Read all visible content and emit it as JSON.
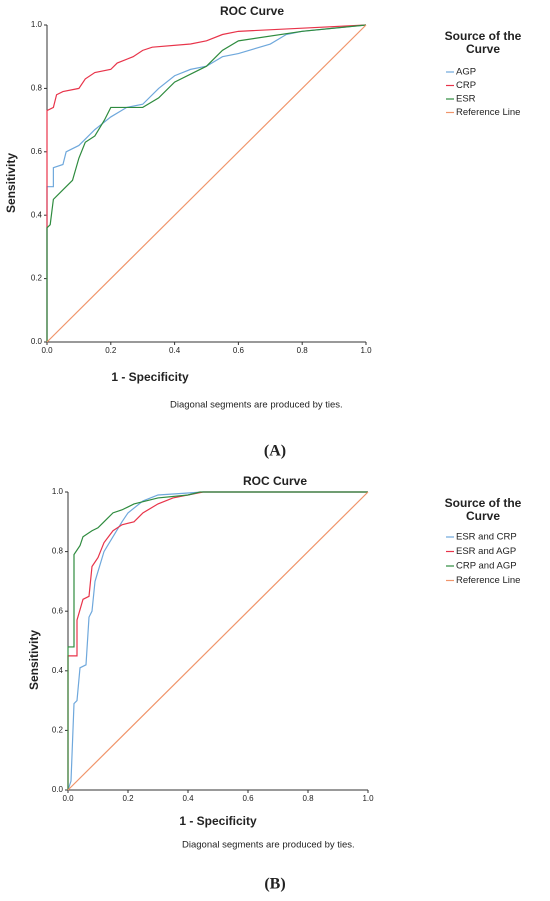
{
  "chart_data": [
    {
      "type": "line",
      "title": "ROC Curve",
      "x_label": "1 - Specificity",
      "y_label": "Sensitivity",
      "note": "Diagonal segments are produced by ties.",
      "caption": "(A)",
      "legend_title": "Source of the Curve",
      "xlim": [
        0,
        1
      ],
      "ylim": [
        0,
        1
      ],
      "xticks": [
        {
          "value": 0,
          "label": "0.0"
        },
        0.2,
        0.4,
        0.6,
        0.8,
        {
          "value": 1,
          "label": "1.0"
        }
      ],
      "yticks": [
        {
          "value": 0,
          "label": "0.0"
        },
        0.2,
        0.4,
        0.6,
        0.8,
        {
          "value": 1,
          "label": "1.0"
        }
      ],
      "series": [
        {
          "name": "AGP",
          "color": "#6fa8dc",
          "x": [
            0,
            0,
            0.02,
            0.02,
            0.05,
            0.06,
            0.1,
            0.15,
            0.2,
            0.25,
            0.3,
            0.35,
            0.4,
            0.45,
            0.5,
            0.55,
            0.6,
            0.7,
            0.75,
            0.8,
            1
          ],
          "values": [
            0,
            0.49,
            0.49,
            0.55,
            0.56,
            0.6,
            0.62,
            0.67,
            0.71,
            0.74,
            0.75,
            0.8,
            0.84,
            0.86,
            0.87,
            0.9,
            0.91,
            0.94,
            0.97,
            0.98,
            1
          ]
        },
        {
          "name": "CRP",
          "color": "#e8344a",
          "x": [
            0,
            0,
            0.02,
            0.03,
            0.05,
            0.1,
            0.12,
            0.15,
            0.2,
            0.22,
            0.27,
            0.3,
            0.33,
            0.45,
            0.5,
            0.55,
            0.6,
            0.8,
            1
          ],
          "values": [
            0,
            0.73,
            0.74,
            0.78,
            0.79,
            0.8,
            0.83,
            0.85,
            0.86,
            0.88,
            0.9,
            0.92,
            0.93,
            0.94,
            0.95,
            0.97,
            0.98,
            0.99,
            1
          ]
        },
        {
          "name": "ESR",
          "color": "#2e8b3e",
          "x": [
            0,
            0,
            0.01,
            0.02,
            0.05,
            0.08,
            0.1,
            0.12,
            0.15,
            0.18,
            0.2,
            0.3,
            0.35,
            0.4,
            0.5,
            0.55,
            0.6,
            0.8,
            1
          ],
          "values": [
            0,
            0.36,
            0.37,
            0.45,
            0.48,
            0.51,
            0.58,
            0.63,
            0.65,
            0.7,
            0.74,
            0.74,
            0.77,
            0.82,
            0.87,
            0.92,
            0.95,
            0.98,
            1
          ]
        },
        {
          "name": "Reference Line",
          "color": "#f0956b",
          "x": [
            0,
            1
          ],
          "values": [
            0,
            1
          ]
        }
      ]
    },
    {
      "type": "line",
      "title": "ROC Curve",
      "x_label": "1 - Specificity",
      "y_label": "Sensitivity",
      "note": "Diagonal segments are produced by ties.",
      "caption": "(B)",
      "legend_title": "Source of the Curve",
      "xlim": [
        0,
        1
      ],
      "ylim": [
        0,
        1
      ],
      "xticks": [
        {
          "value": 0,
          "label": "0.0"
        },
        0.2,
        0.4,
        0.6,
        0.8,
        {
          "value": 1,
          "label": "1.0"
        }
      ],
      "yticks": [
        {
          "value": 0,
          "label": "0.0"
        },
        0.2,
        0.4,
        0.6,
        0.8,
        {
          "value": 1,
          "label": "1.0"
        }
      ],
      "series": [
        {
          "name": "ESR and CRP",
          "color": "#6fa8dc",
          "x": [
            0,
            0.01,
            0.02,
            0.03,
            0.04,
            0.06,
            0.07,
            0.08,
            0.09,
            0.12,
            0.15,
            0.18,
            0.2,
            0.25,
            0.3,
            0.45,
            1
          ],
          "values": [
            0,
            0.03,
            0.29,
            0.3,
            0.41,
            0.42,
            0.58,
            0.6,
            0.7,
            0.8,
            0.85,
            0.9,
            0.93,
            0.97,
            0.99,
            1,
            1
          ]
        },
        {
          "name": "ESR and AGP",
          "color": "#e8344a",
          "x": [
            0,
            0,
            0.03,
            0.03,
            0.05,
            0.07,
            0.08,
            0.1,
            0.12,
            0.15,
            0.18,
            0.22,
            0.25,
            0.3,
            0.35,
            0.45,
            1
          ],
          "values": [
            0,
            0.45,
            0.45,
            0.57,
            0.64,
            0.65,
            0.75,
            0.78,
            0.83,
            0.87,
            0.89,
            0.9,
            0.93,
            0.96,
            0.98,
            1,
            1
          ]
        },
        {
          "name": "CRP and AGP",
          "color": "#2e8b3e",
          "x": [
            0,
            0,
            0.02,
            0.02,
            0.04,
            0.05,
            0.08,
            0.1,
            0.12,
            0.15,
            0.18,
            0.22,
            0.3,
            0.4,
            0.44,
            1
          ],
          "values": [
            0,
            0.48,
            0.48,
            0.79,
            0.82,
            0.85,
            0.87,
            0.88,
            0.9,
            0.93,
            0.94,
            0.96,
            0.98,
            0.99,
            1,
            1
          ]
        },
        {
          "name": "Reference Line",
          "color": "#f0956b",
          "x": [
            0,
            1
          ],
          "values": [
            0,
            1
          ]
        }
      ]
    }
  ]
}
